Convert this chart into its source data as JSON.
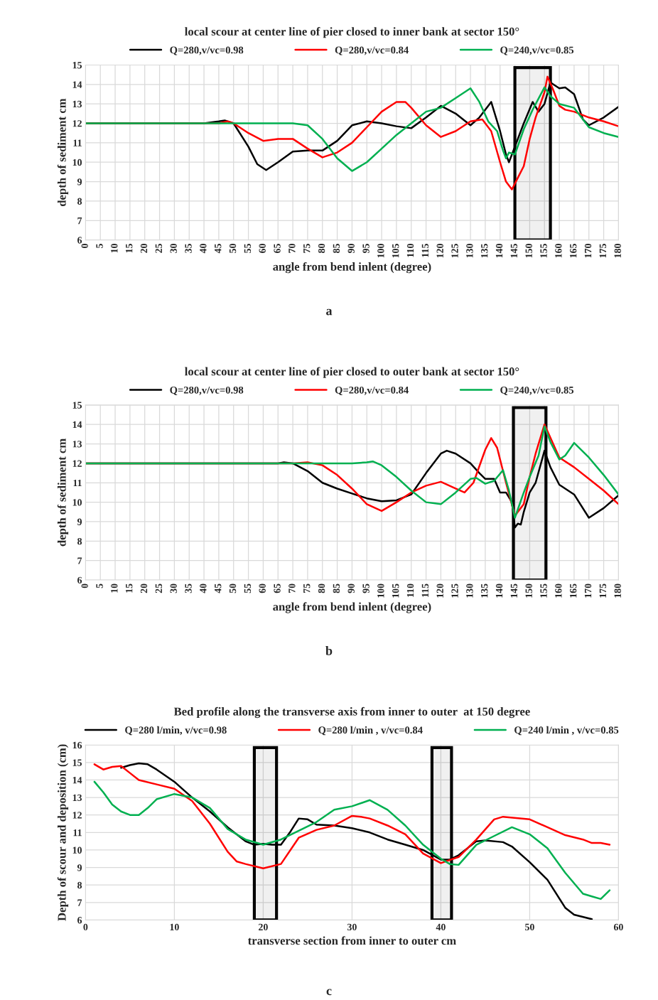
{
  "chart_data": [
    {
      "type": "line",
      "title": "local scour at center line of pier closed to inner bank at sector 150°",
      "xlabel": "angle from bend inlent (degree)",
      "ylabel": "depth of sediment cm",
      "xlim": [
        0,
        180
      ],
      "xticks": [
        0,
        5,
        10,
        15,
        20,
        25,
        30,
        35,
        40,
        45,
        50,
        55,
        60,
        65,
        70,
        75,
        80,
        85,
        90,
        95,
        100,
        105,
        110,
        115,
        120,
        125,
        130,
        135,
        140,
        145,
        150,
        155,
        160,
        165,
        170,
        175,
        180
      ],
      "ylim": [
        6,
        15
      ],
      "yticks": [
        6,
        7,
        8,
        9,
        10,
        11,
        12,
        13,
        14,
        15
      ],
      "grid": true,
      "legend": "top",
      "annotations": [
        "a"
      ],
      "bands": [
        {
          "axis": "x",
          "from": 145,
          "to": 157,
          "color": "#000000"
        }
      ],
      "series": [
        {
          "name": "Q=280,v/vc=0.98",
          "color": "#000000",
          "x": [
            0,
            40,
            45,
            47,
            50,
            55,
            58,
            61,
            65,
            70,
            75,
            80,
            85,
            90,
            95,
            100,
            105,
            110,
            115,
            120,
            125,
            130,
            133,
            137,
            140,
            142,
            143,
            145,
            148,
            151,
            153,
            155,
            157,
            160,
            162,
            165,
            168,
            170,
            175,
            180
          ],
          "values": [
            12,
            12,
            12.1,
            12.15,
            12.0,
            10.8,
            9.9,
            9.6,
            10.0,
            10.55,
            10.6,
            10.6,
            11.1,
            11.9,
            12.1,
            12.0,
            11.85,
            11.75,
            12.3,
            12.9,
            12.5,
            11.9,
            12.3,
            13.1,
            11.6,
            10.4,
            10.0,
            10.8,
            12.0,
            13.1,
            12.6,
            13.0,
            14.1,
            13.8,
            13.85,
            13.5,
            12.2,
            11.9,
            12.3,
            12.85
          ]
        },
        {
          "name": "Q=280,v/vc=0.84",
          "color": "#ff0000",
          "x": [
            0,
            45,
            48,
            50,
            55,
            60,
            65,
            70,
            75,
            80,
            85,
            90,
            95,
            100,
            105,
            108,
            110,
            115,
            120,
            125,
            130,
            134,
            137,
            140,
            142,
            144,
            146,
            148,
            150,
            152,
            155,
            156,
            158,
            160,
            162,
            165,
            170,
            175,
            180
          ],
          "values": [
            12,
            12,
            12.1,
            12.0,
            11.5,
            11.1,
            11.2,
            11.2,
            10.7,
            10.25,
            10.5,
            11.0,
            11.8,
            12.6,
            13.1,
            13.1,
            12.8,
            11.9,
            11.3,
            11.6,
            12.1,
            12.2,
            11.6,
            10.0,
            9.0,
            8.6,
            9.2,
            9.8,
            11.2,
            12.3,
            13.6,
            14.4,
            13.7,
            12.9,
            12.7,
            12.6,
            12.3,
            12.1,
            11.85
          ]
        },
        {
          "name": "Q=240,v/vc=0.85",
          "color": "#00b050",
          "x": [
            0,
            70,
            75,
            80,
            85,
            90,
            95,
            100,
            105,
            110,
            115,
            120,
            125,
            130,
            133,
            136,
            139,
            141,
            142,
            143,
            145,
            148,
            151,
            155,
            157,
            160,
            165,
            170,
            175,
            180
          ],
          "values": [
            12,
            12,
            11.9,
            11.2,
            10.2,
            9.55,
            10.0,
            10.7,
            11.4,
            12.0,
            12.6,
            12.8,
            13.3,
            13.8,
            13.1,
            12.1,
            11.6,
            10.6,
            10.2,
            10.5,
            10.4,
            11.7,
            12.7,
            13.85,
            13.4,
            13.0,
            12.8,
            11.8,
            11.5,
            11.3
          ]
        }
      ]
    },
    {
      "type": "line",
      "title": "local scour at center line of pier closed to outer bank at sector 150°",
      "xlabel": "angle from bend inlent (degree)",
      "ylabel": "depth of sediment cm",
      "xlim": [
        0,
        180
      ],
      "xticks": [
        0,
        5,
        10,
        15,
        20,
        25,
        30,
        35,
        40,
        45,
        50,
        55,
        60,
        65,
        70,
        75,
        80,
        85,
        90,
        95,
        100,
        105,
        110,
        115,
        120,
        125,
        130,
        135,
        140,
        145,
        150,
        155,
        160,
        165,
        170,
        175,
        180
      ],
      "ylim": [
        6,
        15
      ],
      "yticks": [
        6,
        7,
        8,
        9,
        10,
        11,
        12,
        13,
        14,
        15
      ],
      "grid": true,
      "legend": "top",
      "annotations": [
        "b"
      ],
      "bands": [
        {
          "axis": "x",
          "from": 144.5,
          "to": 155.5,
          "color": "#000000"
        }
      ],
      "series": [
        {
          "name": "Q=280,v/vc=0.98",
          "color": "#000000",
          "x": [
            0,
            65,
            67,
            70,
            75,
            80,
            85,
            90,
            95,
            100,
            105,
            110,
            115,
            120,
            122,
            125,
            130,
            133,
            135,
            138,
            140,
            142,
            144,
            145,
            146,
            147,
            148,
            150,
            152,
            155,
            157,
            160,
            165,
            170,
            175,
            180
          ],
          "values": [
            12,
            12,
            12.05,
            12.0,
            11.6,
            11.0,
            10.7,
            10.45,
            10.2,
            10.05,
            10.1,
            10.4,
            11.5,
            12.5,
            12.65,
            12.5,
            12.0,
            11.5,
            11.2,
            11.2,
            10.5,
            10.5,
            10.0,
            8.7,
            8.9,
            8.85,
            9.5,
            10.5,
            11.0,
            12.65,
            11.8,
            10.9,
            10.4,
            9.2,
            9.7,
            10.35
          ]
        },
        {
          "name": "Q=280,v/vc=0.84",
          "color": "#ff0000",
          "x": [
            0,
            70,
            75,
            80,
            85,
            90,
            95,
            100,
            105,
            110,
            115,
            120,
            125,
            128,
            131,
            135,
            137,
            139,
            142,
            145,
            148,
            150,
            152,
            155,
            160,
            165,
            170,
            175,
            180
          ],
          "values": [
            12,
            12,
            12.05,
            11.9,
            11.4,
            10.7,
            9.9,
            9.55,
            10.0,
            10.5,
            10.85,
            11.05,
            10.7,
            10.5,
            11.0,
            12.7,
            13.3,
            12.8,
            11.0,
            9.3,
            9.9,
            11.3,
            12.5,
            14.0,
            12.3,
            11.8,
            11.2,
            10.6,
            9.9
          ]
        },
        {
          "name": "Q=240,v/vc=0.85",
          "color": "#00b050",
          "x": [
            0,
            90,
            95,
            97,
            100,
            105,
            110,
            115,
            120,
            125,
            130,
            132,
            135,
            138,
            141,
            143,
            145,
            148,
            150,
            153,
            155,
            157,
            160,
            162,
            165,
            170,
            175,
            180
          ],
          "values": [
            12,
            12,
            12.05,
            12.1,
            11.9,
            11.3,
            10.6,
            10.0,
            9.9,
            10.5,
            11.2,
            11.25,
            10.95,
            11.1,
            11.65,
            10.6,
            9.2,
            10.5,
            11.3,
            12.4,
            13.9,
            13.1,
            12.2,
            12.4,
            13.05,
            12.3,
            11.4,
            10.4
          ]
        }
      ]
    },
    {
      "type": "line",
      "title": "Bed profile along the transverse axis from inner to outer  at 150 degree",
      "xlabel": "transverse section from inner to outer cm",
      "ylabel": "Depth of scour and deposition (cm)",
      "xlim": [
        0,
        60
      ],
      "xticks": [
        0,
        10,
        20,
        30,
        40,
        50,
        60
      ],
      "ylim": [
        6,
        16
      ],
      "yticks": [
        6,
        7,
        8,
        9,
        10,
        11,
        12,
        13,
        14,
        15,
        16
      ],
      "grid": true,
      "legend": "top",
      "annotations": [
        "c"
      ],
      "bands": [
        {
          "axis": "x",
          "from": 19,
          "to": 21.5,
          "color": "#000000"
        },
        {
          "axis": "x",
          "from": 39,
          "to": 41.2,
          "color": "#000000"
        }
      ],
      "series": [
        {
          "name": "Q=280 l/min, v/vc=0.98",
          "color": "#000000",
          "x": [
            4,
            5,
            6,
            7,
            8,
            10,
            12,
            14,
            16,
            18,
            19,
            20,
            21,
            22,
            23,
            24,
            25,
            26,
            28,
            30,
            32,
            34,
            36,
            38,
            40,
            41,
            42,
            44,
            45,
            47,
            48,
            50,
            52,
            54,
            55,
            57
          ],
          "values": [
            14.7,
            14.85,
            14.95,
            14.9,
            14.6,
            13.9,
            13.0,
            12.2,
            11.3,
            10.5,
            10.3,
            10.35,
            10.3,
            10.3,
            11.0,
            11.8,
            11.75,
            11.45,
            11.4,
            11.25,
            11.0,
            10.6,
            10.3,
            10.0,
            9.45,
            9.45,
            9.7,
            10.5,
            10.55,
            10.45,
            10.2,
            9.3,
            8.3,
            6.7,
            6.3,
            6.05
          ]
        },
        {
          "name": "Q=280 l/min , v/vc=0.84",
          "color": "#ff0000",
          "x": [
            1,
            2,
            3,
            4,
            5,
            6,
            8,
            10,
            12,
            14,
            16,
            17,
            18,
            20,
            22,
            24,
            26,
            28,
            30,
            31,
            32,
            34,
            36,
            38,
            40,
            42,
            44,
            46,
            47,
            50,
            52,
            54,
            56,
            57,
            58,
            59
          ],
          "values": [
            14.9,
            14.6,
            14.75,
            14.8,
            14.4,
            14.0,
            13.75,
            13.5,
            12.8,
            11.5,
            9.9,
            9.35,
            9.2,
            8.95,
            9.2,
            10.7,
            11.15,
            11.4,
            11.95,
            11.9,
            11.8,
            11.4,
            10.9,
            9.8,
            9.25,
            9.6,
            10.6,
            11.75,
            11.9,
            11.75,
            11.3,
            10.85,
            10.6,
            10.4,
            10.4,
            10.3
          ]
        },
        {
          "name": "Q=240 l/min , v/vc=0.85",
          "color": "#00b050",
          "x": [
            1,
            2,
            3,
            4,
            5,
            6,
            7,
            8,
            10,
            12,
            14,
            16,
            18,
            20,
            22,
            24,
            26,
            28,
            30,
            32,
            34,
            36,
            38,
            40,
            41,
            42,
            44,
            46,
            48,
            50,
            52,
            54,
            56,
            57,
            58,
            59
          ],
          "values": [
            13.9,
            13.3,
            12.6,
            12.2,
            12.0,
            12.0,
            12.4,
            12.9,
            13.2,
            13.0,
            12.4,
            11.2,
            10.6,
            10.3,
            10.6,
            11.1,
            11.6,
            12.3,
            12.5,
            12.85,
            12.3,
            11.4,
            10.3,
            9.5,
            9.2,
            9.15,
            10.3,
            10.8,
            11.3,
            10.9,
            10.1,
            8.7,
            7.5,
            7.35,
            7.2,
            7.7
          ]
        }
      ]
    }
  ]
}
